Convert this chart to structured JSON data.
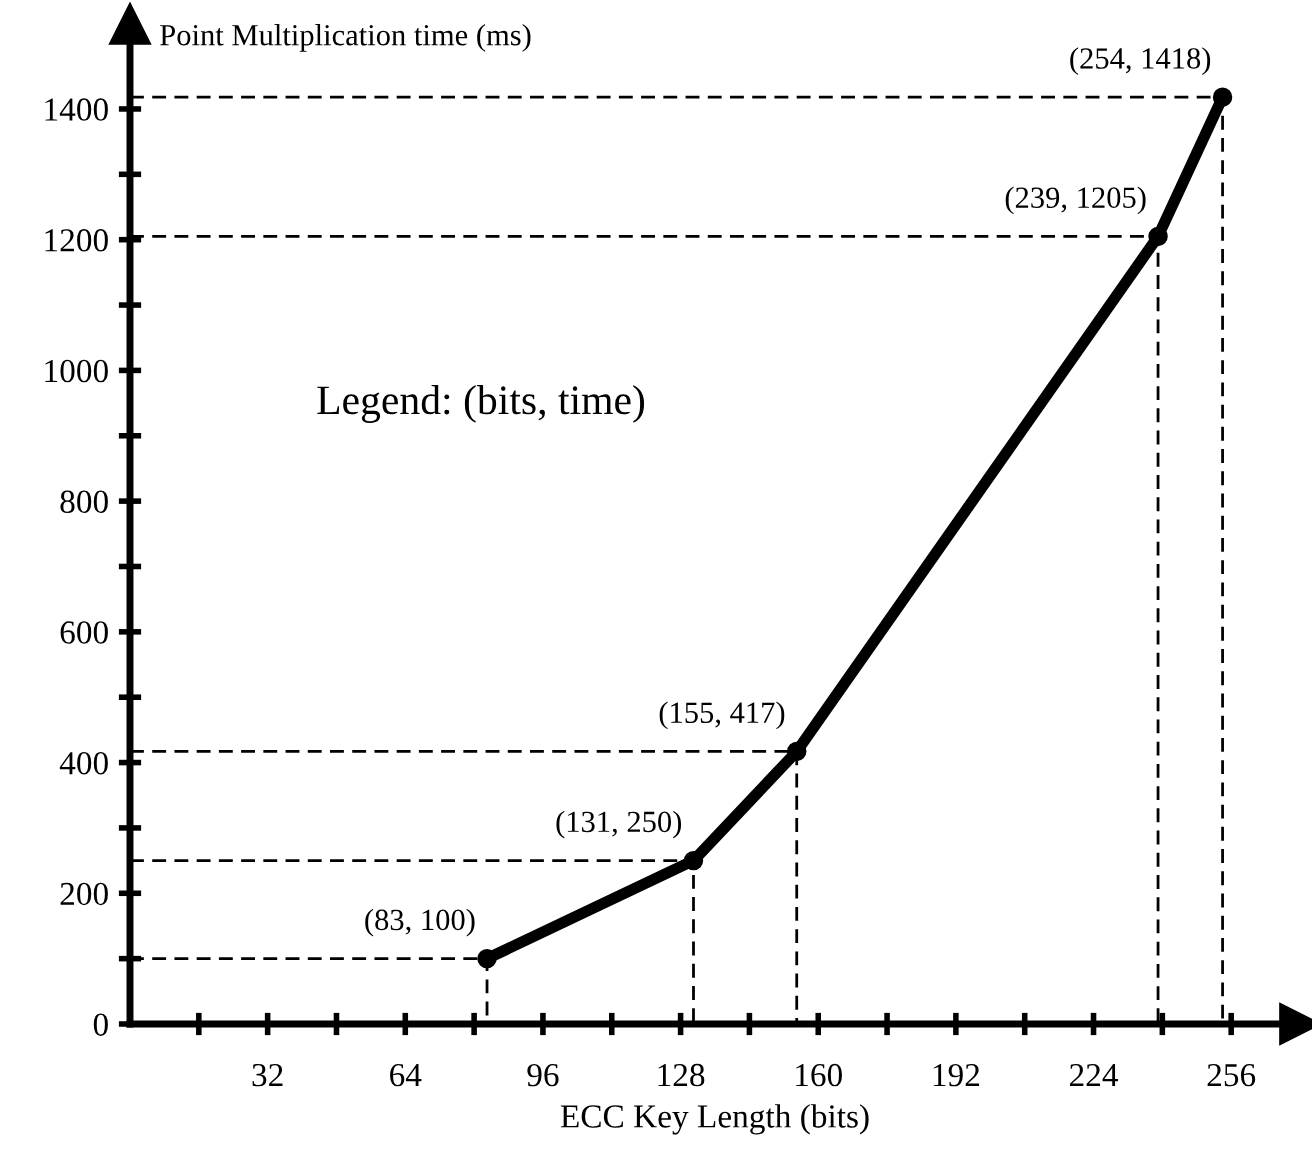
{
  "chart_data": {
    "type": "line",
    "xlabel": "ECC Key Length (bits)",
    "ylabel": "Point Multiplication time (ms)",
    "x": [
      83,
      131,
      155,
      239,
      254
    ],
    "series": [
      {
        "color": "#000000",
        "values": [
          100,
          250,
          417,
          1205,
          1418
        ],
        "marker": "circle",
        "line_style": "solid"
      },
      {
        "type": "line",
        "color": "#000000",
        "x": [
          0,
          83,
          83
        ],
        "values": [
          100,
          100,
          0
        ],
        "marker": "none",
        "line_style": "dashed"
      },
      {
        "type": "line",
        "color": "#000000",
        "x": [
          0,
          131,
          131
        ],
        "values": [
          250,
          250,
          0
        ],
        "marker": "none",
        "line_style": "dashed"
      },
      {
        "type": "line",
        "color": "#000000",
        "x": [
          0,
          155,
          155
        ],
        "values": [
          417,
          417,
          0
        ],
        "marker": "none",
        "line_style": "dashed"
      },
      {
        "type": "line",
        "color": "#000000",
        "x": [
          0,
          239,
          239
        ],
        "values": [
          1205,
          1205,
          0
        ],
        "marker": "none",
        "line_style": "dashed"
      },
      {
        "type": "line",
        "color": "#000000",
        "x": [
          0,
          254,
          254
        ],
        "values": [
          1418,
          1418,
          0
        ],
        "marker": "none",
        "line_style": "dashed"
      }
    ],
    "annotations": [
      {
        "text": "(83, 100)",
        "x": 83,
        "y": 100
      },
      {
        "text": "(131, 250)",
        "x": 131,
        "y": 250
      },
      {
        "text": "(155, 417)",
        "x": 155,
        "y": 417
      },
      {
        "text": "(239, 1205)",
        "x": 239,
        "y": 1205
      },
      {
        "text": "(254, 1418)",
        "x": 254,
        "y": 1418
      },
      "Legend: (bits, time)"
    ],
    "xlim": [
      0,
      272
    ],
    "ylim": [
      0,
      1530
    ],
    "xticks": [
      {
        "value": 16,
        "label": null
      },
      32,
      {
        "value": 48,
        "label": null
      },
      64,
      {
        "value": 80,
        "label": null
      },
      96,
      {
        "value": 112,
        "label": null
      },
      128,
      {
        "value": 144,
        "label": null
      },
      160,
      {
        "value": 176,
        "label": null
      },
      192,
      {
        "value": 208,
        "label": null
      },
      224,
      {
        "value": 240,
        "label": null
      },
      256
    ],
    "yticks": [
      0,
      {
        "value": 100,
        "label": null
      },
      200,
      {
        "value": 300,
        "label": null
      },
      400,
      {
        "value": 500,
        "label": null
      },
      600,
      {
        "value": 700,
        "label": null
      },
      800,
      {
        "value": 900,
        "label": null
      },
      1000,
      {
        "value": 1100,
        "label": null
      },
      1200,
      {
        "value": 1300,
        "label": null
      },
      1400
    ],
    "grid": false,
    "legend": false
  }
}
